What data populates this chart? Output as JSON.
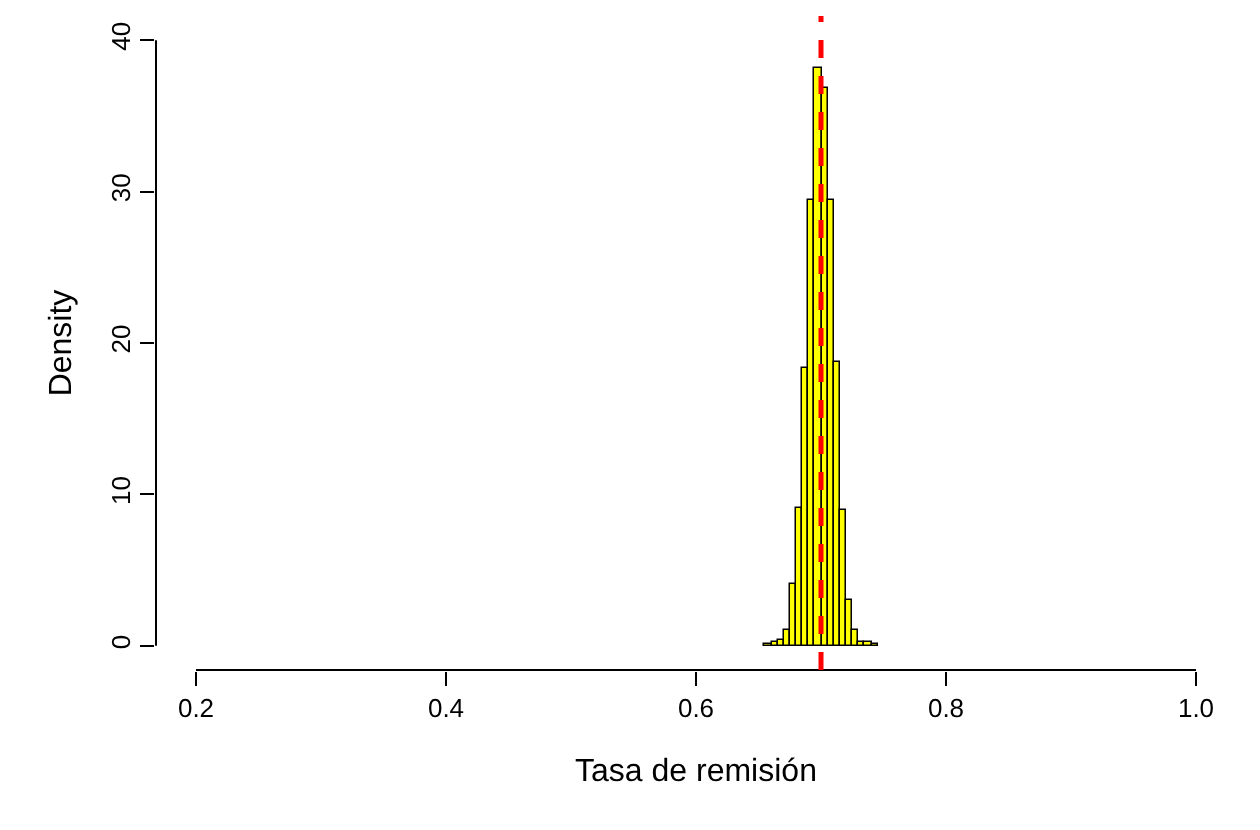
{
  "chart_data": {
    "type": "histogram",
    "xlabel": "Tasa de remisión",
    "ylabel": "Density",
    "bins": [
      0.655,
      0.66,
      0.665,
      0.67,
      0.675,
      0.68,
      0.685,
      0.69,
      0.695,
      0.7,
      0.705,
      0.71,
      0.715,
      0.72,
      0.725,
      0.73,
      0.735,
      0.74,
      0.745
    ],
    "values": [
      0.1,
      0.2,
      0.4,
      1.0,
      4.1,
      9.1,
      18.3,
      29.4,
      38.2,
      36.9,
      29.4,
      18.8,
      9.0,
      3.0,
      1.1,
      0.3,
      0.2,
      0.1
    ],
    "color": "#ffff00",
    "xlim": [
      0.2,
      1.0
    ],
    "xticks": [
      0.2,
      0.4,
      0.6,
      0.8,
      {
        "value": 1.0,
        "label": "1.0"
      }
    ],
    "ylim": [
      0,
      40
    ],
    "yticks": [
      0,
      10,
      20,
      30,
      40
    ],
    "ref_lines": [
      {
        "axis": "x",
        "value": 0.7,
        "color": "#ff0000",
        "line_style": "dashed"
      }
    ]
  }
}
